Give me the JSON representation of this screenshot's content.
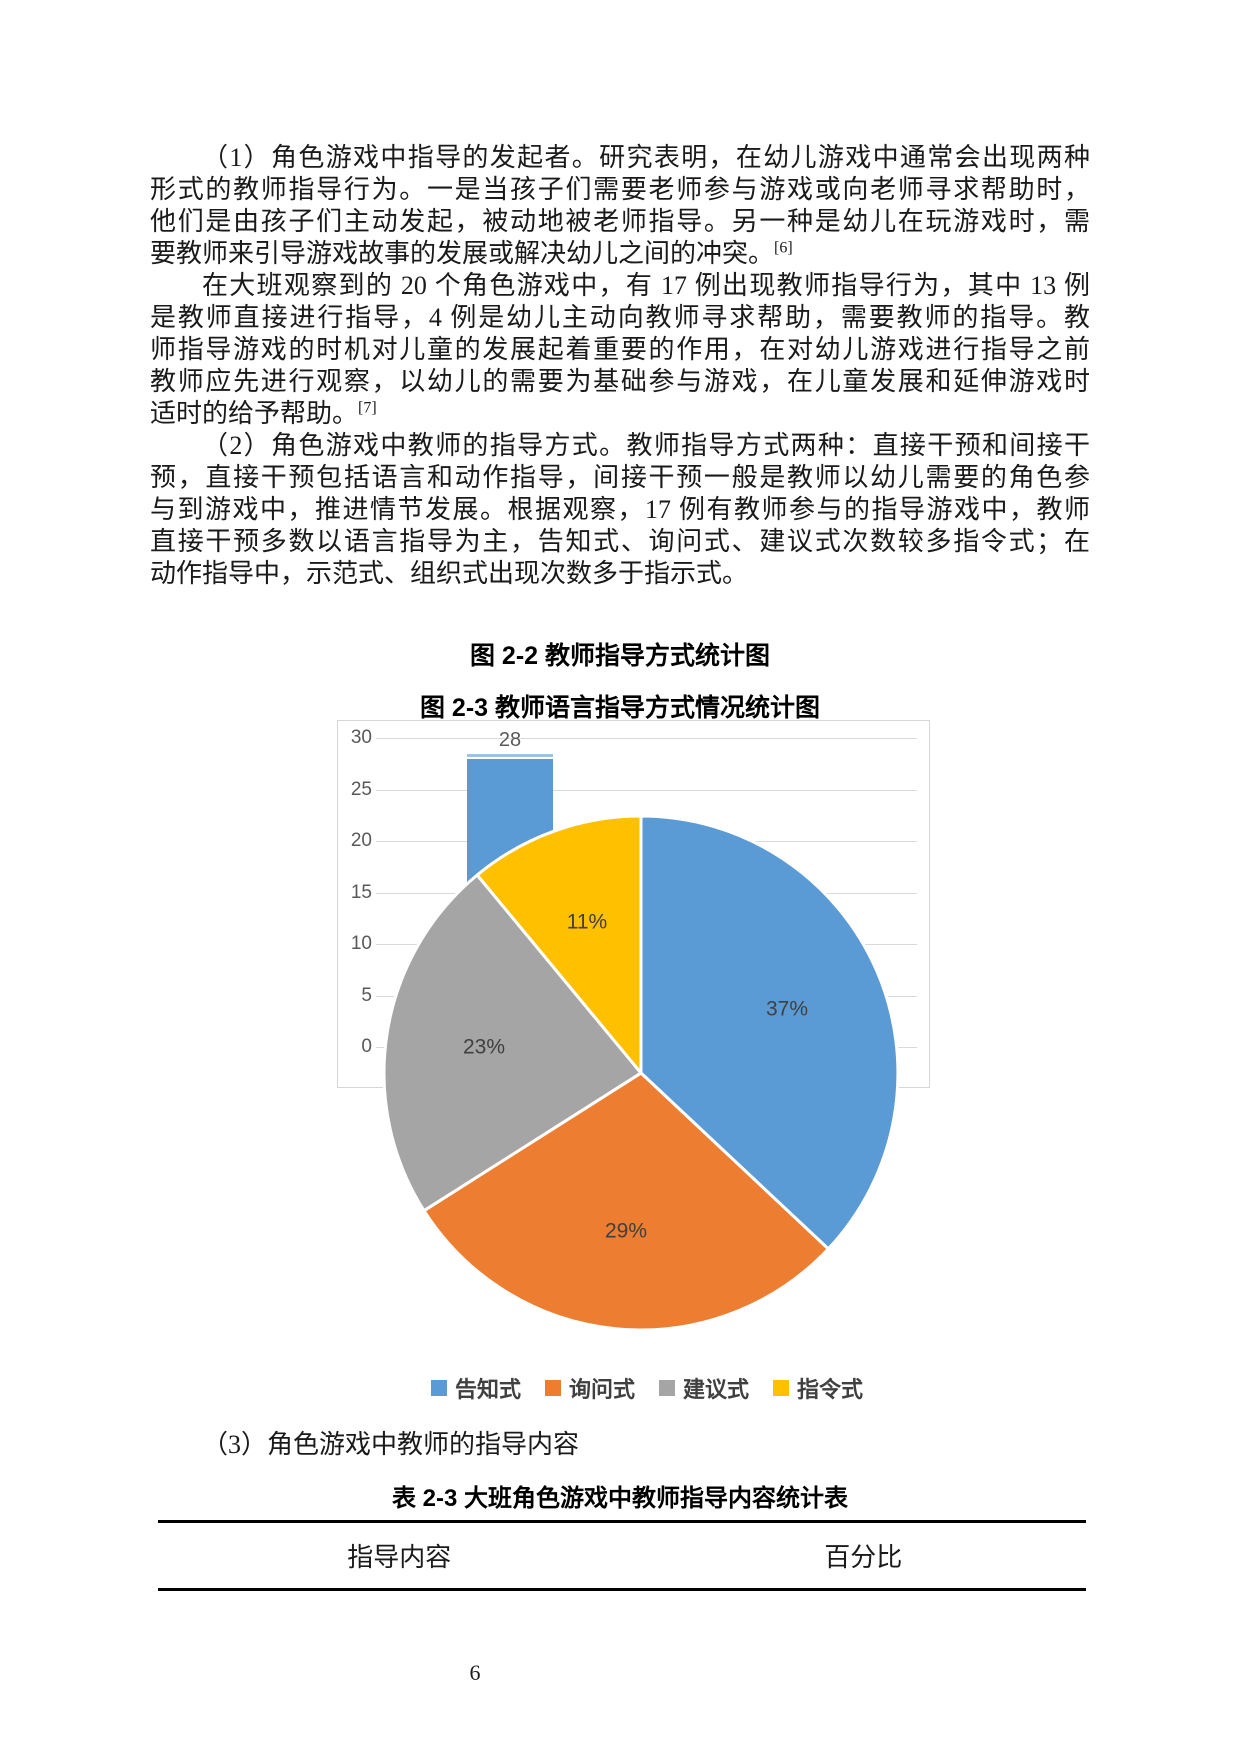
{
  "page_number": "6",
  "body": {
    "paragraphs": [
      {
        "lines": [
          "（1）角色游戏中指导的发起者。研究表明，在幼儿游戏中通常会出现两种",
          "形式的教师指导行为。一是当孩子们需要老师参与游戏或向老师寻求帮助时，",
          "他们是由孩子们主动发起，被动地被老师指导。另一种是幼儿在玩游戏时，需",
          "要教师来引导游戏故事的发展或解决幼儿之间的冲突。"
        ],
        "ref": "[6]"
      },
      {
        "lines": [
          "在大班观察到的 20 个角色游戏中，有 17 例出现教师指导行为，其中 13 例",
          "是教师直接进行指导，4 例是幼儿主动向教师寻求帮助，需要教师的指导。教",
          "师指导游戏的时机对儿童的发展起着重要的作用，在对幼儿游戏进行指导之前",
          "教师应先进行观察，以幼儿的需要为基础参与游戏，在儿童发展和延伸游戏时",
          "适时的给予帮助。"
        ],
        "ref": "[7]"
      },
      {
        "lines": [
          "（2）角色游戏中教师的指导方式。教师指导方式两种：直接干预和间接干",
          "预，直接干预包括语言和动作指导，间接干预一般是教师以幼儿需要的角色参",
          "与到游戏中，推进情节发展。根据观察，17 例有教师参与的指导游戏中，教师",
          "直接干预多数以语言指导为主，告知式、询问式、建议式次数较多指令式；在",
          "动作指导中，示范式、组织式出现次数多于指示式。"
        ],
        "ref": ""
      }
    ],
    "item3_heading": "（3）角色游戏中教师的指导内容"
  },
  "figure": {
    "caption_fig22": "图 2-2 教师指导方式统计图",
    "caption_fig23": "图 2-3 教师语言指导方式情况统计图"
  },
  "chart_data": [
    {
      "type": "bar",
      "title": "图 2-2 教师指导方式统计图",
      "categories": [
        ""
      ],
      "values": [
        28
      ],
      "data_labels": [
        "28"
      ],
      "xlabel": "",
      "ylabel": "",
      "ylim": [
        0,
        30
      ],
      "yticks": [
        0,
        5,
        10,
        15,
        20,
        25,
        30
      ],
      "grid": true,
      "bar_color": "#5B9BD5",
      "bar_top_highlight_color": "#9DC3E6",
      "note_visible_portion": "only one bar visible; rest of bar chart hidden behind pie chart"
    },
    {
      "type": "pie",
      "title": "图 2-3 教师语言指导方式情况统计图",
      "labels": [
        "告知式",
        "询问式",
        "建议式",
        "指令式"
      ],
      "values_percent": [
        37,
        29,
        23,
        11
      ],
      "data_labels": [
        "37%",
        "29%",
        "23%",
        "11%"
      ],
      "colors": [
        "#5B9BD5",
        "#ED7D31",
        "#A5A5A5",
        "#FFC000"
      ],
      "start_angle_deg_clockwise_from_top": 0,
      "legend_position": "bottom",
      "slice_border_color": "#FFFFFF"
    }
  ],
  "table": {
    "caption": "表 2-3 大班角色游戏中教师指导内容统计表",
    "headers": [
      "指导内容",
      "百分比"
    ],
    "rows": []
  }
}
